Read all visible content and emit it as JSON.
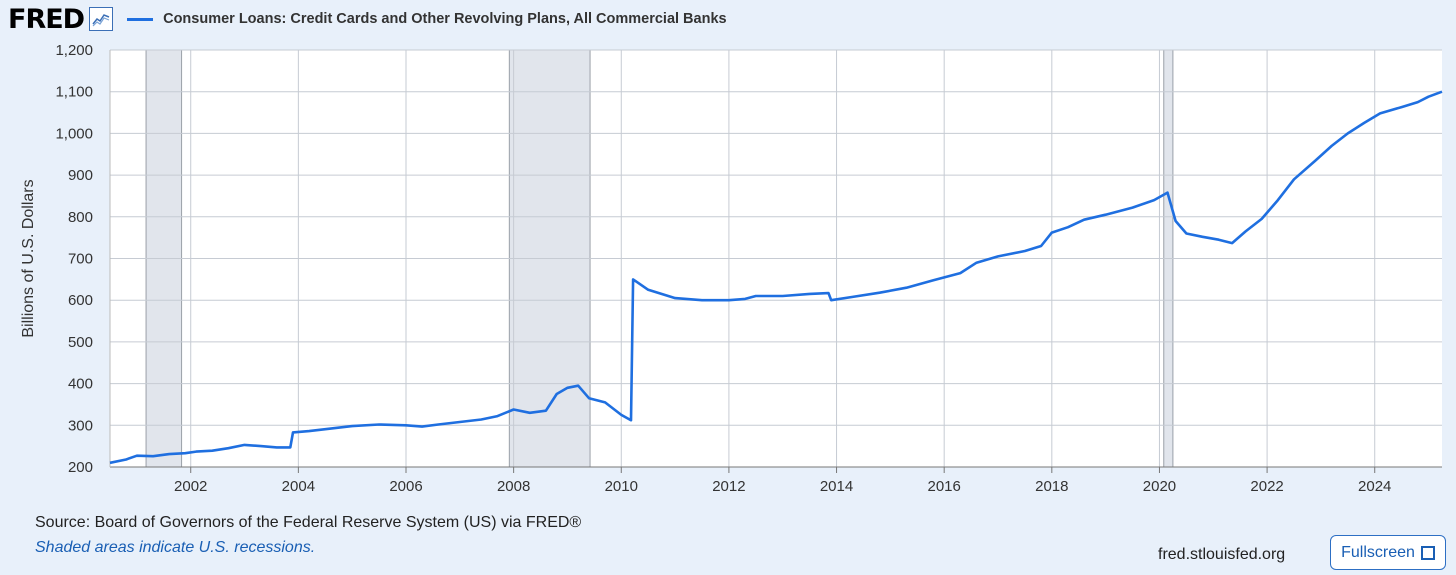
{
  "header": {
    "logo_text": "FRED",
    "logo_icon": "line-chart-icon",
    "series_title": "Consumer Loans: Credit Cards and Other Revolving Plans, All Commercial Banks"
  },
  "footer": {
    "source": "Source: Board of Governors of the Federal Reserve System (US) via FRED®",
    "shaded_note": "Shaded areas indicate U.S. recessions.",
    "site": "fred.stlouisfed.org",
    "fullscreen_label": "Fullscreen",
    "fullscreen_icon": "expand-icon"
  },
  "colors": {
    "series": "#1f6fe0",
    "background": "#e8f0fa",
    "plot_background": "#ffffff",
    "recession": "#e1e5ec",
    "grid": "#c6cbd3"
  },
  "chart_data": {
    "type": "line",
    "title": "Consumer Loans: Credit Cards and Other Revolving Plans, All Commercial Banks",
    "xlabel": "",
    "ylabel": "Billions of U.S. Dollars",
    "xlim": [
      2000.5,
      2025.25
    ],
    "ylim": [
      200,
      1200
    ],
    "y_ticks": [
      200,
      300,
      400,
      500,
      600,
      700,
      800,
      900,
      1000,
      1100,
      1200
    ],
    "y_tick_labels": [
      "200",
      "300",
      "400",
      "500",
      "600",
      "700",
      "800",
      "900",
      "1,000",
      "1,100",
      "1,200"
    ],
    "x_ticks": [
      2002,
      2004,
      2006,
      2008,
      2010,
      2012,
      2014,
      2016,
      2018,
      2020,
      2022,
      2024
    ],
    "x_tick_labels": [
      "2002",
      "2004",
      "2006",
      "2008",
      "2010",
      "2012",
      "2014",
      "2016",
      "2018",
      "2020",
      "2022",
      "2024"
    ],
    "grid": true,
    "legend": "top-left",
    "recessions": [
      [
        2001.17,
        2001.83
      ],
      [
        2007.92,
        2009.42
      ],
      [
        2020.08,
        2020.25
      ]
    ],
    "series": [
      {
        "name": "Consumer Loans: Credit Cards and Other Revolving Plans, All Commercial Banks",
        "points": [
          [
            2000.5,
            210
          ],
          [
            2000.8,
            218
          ],
          [
            2001.0,
            227
          ],
          [
            2001.3,
            226
          ],
          [
            2001.6,
            231
          ],
          [
            2001.9,
            233
          ],
          [
            2002.1,
            237
          ],
          [
            2002.4,
            239
          ],
          [
            2002.7,
            245
          ],
          [
            2003.0,
            253
          ],
          [
            2003.3,
            250
          ],
          [
            2003.6,
            247
          ],
          [
            2003.85,
            247
          ],
          [
            2003.9,
            283
          ],
          [
            2004.2,
            286
          ],
          [
            2004.6,
            292
          ],
          [
            2005.0,
            298
          ],
          [
            2005.5,
            302
          ],
          [
            2006.0,
            300
          ],
          [
            2006.3,
            297
          ],
          [
            2006.6,
            302
          ],
          [
            2007.0,
            308
          ],
          [
            2007.4,
            314
          ],
          [
            2007.7,
            322
          ],
          [
            2008.0,
            338
          ],
          [
            2008.3,
            330
          ],
          [
            2008.6,
            335
          ],
          [
            2008.8,
            375
          ],
          [
            2009.0,
            390
          ],
          [
            2009.2,
            395
          ],
          [
            2009.4,
            365
          ],
          [
            2009.7,
            355
          ],
          [
            2010.0,
            325
          ],
          [
            2010.18,
            312
          ],
          [
            2010.22,
            650
          ],
          [
            2010.5,
            625
          ],
          [
            2011.0,
            605
          ],
          [
            2011.5,
            600
          ],
          [
            2012.0,
            600
          ],
          [
            2012.3,
            603
          ],
          [
            2012.5,
            610
          ],
          [
            2013.0,
            610
          ],
          [
            2013.5,
            615
          ],
          [
            2013.85,
            617
          ],
          [
            2013.9,
            600
          ],
          [
            2014.3,
            608
          ],
          [
            2014.8,
            618
          ],
          [
            2015.3,
            630
          ],
          [
            2015.8,
            648
          ],
          [
            2016.3,
            665
          ],
          [
            2016.6,
            690
          ],
          [
            2017.0,
            705
          ],
          [
            2017.5,
            718
          ],
          [
            2017.8,
            730
          ],
          [
            2018.0,
            762
          ],
          [
            2018.3,
            775
          ],
          [
            2018.6,
            793
          ],
          [
            2019.0,
            805
          ],
          [
            2019.5,
            822
          ],
          [
            2019.9,
            840
          ],
          [
            2020.15,
            858
          ],
          [
            2020.3,
            790
          ],
          [
            2020.5,
            760
          ],
          [
            2020.8,
            752
          ],
          [
            2021.1,
            745
          ],
          [
            2021.35,
            737
          ],
          [
            2021.6,
            765
          ],
          [
            2021.9,
            795
          ],
          [
            2022.2,
            840
          ],
          [
            2022.5,
            890
          ],
          [
            2022.9,
            935
          ],
          [
            2023.2,
            970
          ],
          [
            2023.5,
            1000
          ],
          [
            2023.8,
            1025
          ],
          [
            2024.1,
            1048
          ],
          [
            2024.5,
            1063
          ],
          [
            2024.8,
            1075
          ],
          [
            2025.0,
            1088
          ],
          [
            2025.25,
            1100
          ]
        ]
      }
    ]
  }
}
